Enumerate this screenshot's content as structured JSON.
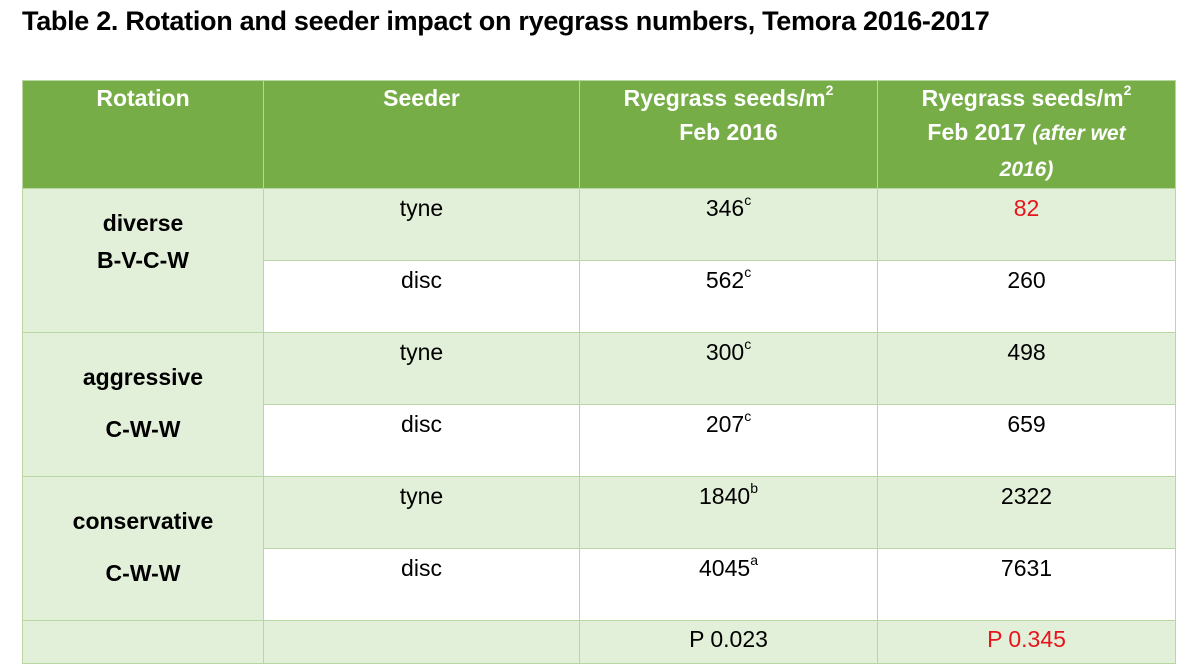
{
  "title": "Table 2. Rotation and seeder impact on ryegrass numbers, Temora 2016-2017",
  "headers": {
    "rotation": "Rotation",
    "seeder": "Seeder",
    "col3_line1": "Ryegrass seeds/m",
    "col3_sup": "2",
    "col3_line2": "Feb 2016",
    "col4_line1": "Ryegrass seeds/m",
    "col4_sup": "2",
    "col4_line2": "Feb 2017",
    "col4_italic_a": "(after wet",
    "col4_italic_b": "2016)"
  },
  "groups": [
    {
      "name": "diverse",
      "code": "B-V-C-W",
      "rows": [
        {
          "seeder": "tyne",
          "feb2016": "346",
          "feb2016_sup": "c",
          "feb2017": "82"
        },
        {
          "seeder": "disc",
          "feb2016": "562",
          "feb2016_sup": "c",
          "feb2017": "260"
        }
      ]
    },
    {
      "name": "aggressive",
      "code": "C-W-W",
      "rows": [
        {
          "seeder": "tyne",
          "feb2016": "300",
          "feb2016_sup": "c",
          "feb2017": "498"
        },
        {
          "seeder": "disc",
          "feb2016": "207",
          "feb2016_sup": "c",
          "feb2017": "659"
        }
      ]
    },
    {
      "name": "conservative",
      "code": "C-W-W",
      "rows": [
        {
          "seeder": "tyne",
          "feb2016": "1840",
          "feb2016_sup": "b",
          "feb2017": "2322"
        },
        {
          "seeder": "disc",
          "feb2016": "4045",
          "feb2016_sup": "a",
          "feb2017": "7631"
        }
      ]
    }
  ],
  "footer": {
    "p_2016": "P 0.023",
    "p_2017": "P 0.345"
  },
  "colors": {
    "header_bg": "#77ad47",
    "shade_bg": "#e2efd9",
    "border": "#b8d7a3",
    "highlight_red": "#e8141b"
  }
}
